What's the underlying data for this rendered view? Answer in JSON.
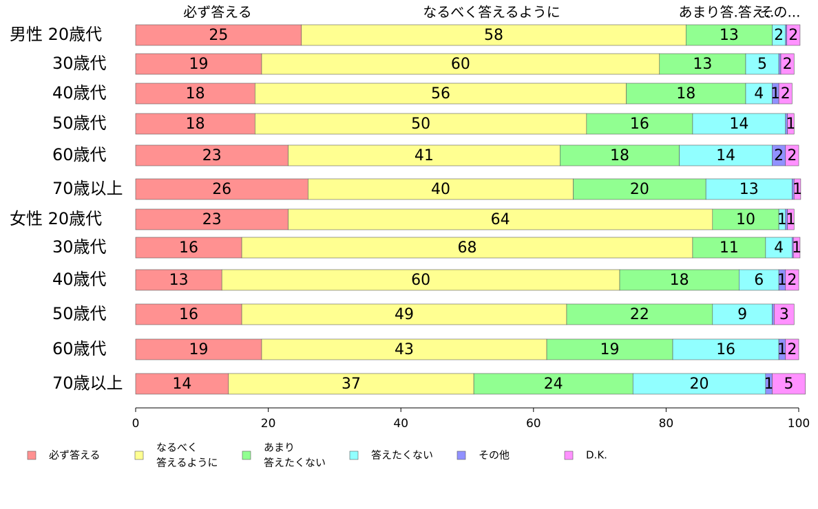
{
  "chart_data": {
    "type": "bar",
    "orientation": "horizontal",
    "stacked": true,
    "xlim": [
      0,
      100
    ],
    "x_ticks": [
      "0",
      "20",
      "40",
      "60",
      "80",
      "100"
    ],
    "top_labels": [
      "必ず答える",
      "なるべく答えるように",
      "あまり答.答え..",
      "その..."
    ],
    "row_labels": [
      "男性 20歳代",
      "30歳代",
      "40歳代",
      "50歳代",
      "60歳代",
      "70歳以上",
      "女性 20歳代",
      "30歳代",
      "40歳代",
      "50歳代",
      "60歳代",
      "70歳以上"
    ],
    "series": [
      {
        "name": "必ず答える",
        "color": "#ff9191",
        "values": [
          25,
          19,
          18,
          18,
          23,
          26,
          23,
          16,
          13,
          16,
          19,
          14
        ],
        "labels": [
          "25",
          "19",
          "18",
          "18",
          "23",
          "26",
          "23",
          "16",
          "13",
          "16",
          "19",
          "14"
        ]
      },
      {
        "name": "なるべく\n答えるように",
        "color": "#ffff91",
        "values": [
          58,
          60,
          56,
          50,
          41,
          40,
          64,
          68,
          60,
          49,
          43,
          37
        ],
        "labels": [
          "58",
          "60",
          "56",
          "50",
          "41",
          "40",
          "64",
          "68",
          "60",
          "49",
          "43",
          "37"
        ]
      },
      {
        "name": "あまり\n答えたくない",
        "color": "#91ff91",
        "values": [
          13,
          13,
          18,
          16,
          18,
          20,
          10,
          11,
          18,
          22,
          19,
          24
        ],
        "labels": [
          "13",
          "13",
          "18",
          "16",
          "18",
          "20",
          "10",
          "11",
          "18",
          "22",
          "19",
          "24"
        ]
      },
      {
        "name": "答えたくない",
        "color": "#91ffff",
        "values": [
          2,
          5,
          4,
          14,
          14,
          13,
          1,
          4,
          6,
          9,
          16,
          20
        ],
        "labels": [
          "2",
          "5",
          "4",
          "14",
          "14",
          "13",
          "1",
          "4",
          "6",
          "9",
          "16",
          "20"
        ]
      },
      {
        "name": "その他",
        "color": "#9191ff",
        "values": [
          0.2,
          0.3,
          1,
          0.3,
          2,
          0.3,
          0.3,
          0.2,
          1,
          0.3,
          1,
          1
        ],
        "labels": [
          "",
          "",
          "1",
          "",
          "2",
          "",
          "",
          "",
          "1",
          "",
          "1",
          "1"
        ]
      },
      {
        "name": "D.K.",
        "color": "#ff91ff",
        "values": [
          2,
          2,
          2,
          1,
          2,
          1,
          1,
          1,
          2,
          3,
          2,
          5
        ],
        "labels": [
          "2",
          "2",
          "2",
          "1",
          "2",
          "1",
          "1",
          "1",
          "2",
          "3",
          "2",
          "5"
        ]
      }
    ],
    "legend": {
      "position": "bottom",
      "columns": 6
    },
    "grid": false
  }
}
